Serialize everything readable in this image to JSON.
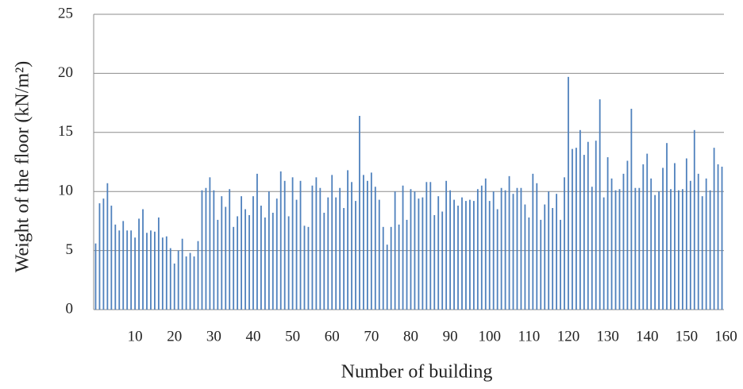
{
  "chart_data": {
    "type": "bar",
    "x_label": "Number of building",
    "y_label": "Weight of the floor (kN/m²)",
    "categories": [
      null,
      null,
      null,
      null,
      null,
      null,
      null,
      null,
      null,
      "10",
      null,
      null,
      null,
      null,
      null,
      null,
      null,
      null,
      null,
      "20",
      null,
      null,
      null,
      null,
      null,
      null,
      null,
      null,
      null,
      "30",
      null,
      null,
      null,
      null,
      null,
      null,
      null,
      null,
      null,
      "40",
      null,
      null,
      null,
      null,
      null,
      null,
      null,
      null,
      null,
      "50",
      null,
      null,
      null,
      null,
      null,
      null,
      null,
      null,
      null,
      "60",
      null,
      null,
      null,
      null,
      null,
      null,
      null,
      null,
      null,
      "70",
      null,
      null,
      null,
      null,
      null,
      null,
      null,
      null,
      null,
      "80",
      null,
      null,
      null,
      null,
      null,
      null,
      null,
      null,
      null,
      "90",
      null,
      null,
      null,
      null,
      null,
      null,
      null,
      null,
      null,
      "100",
      null,
      null,
      null,
      null,
      null,
      null,
      null,
      null,
      null,
      "110",
      null,
      null,
      null,
      null,
      null,
      null,
      null,
      null,
      null,
      "120",
      null,
      null,
      null,
      null,
      null,
      null,
      null,
      null,
      null,
      "130",
      null,
      null,
      null,
      null,
      null,
      null,
      null,
      null,
      null,
      "140",
      null,
      null,
      null,
      null,
      null,
      null,
      null,
      null,
      null,
      "150",
      null,
      null,
      null,
      null,
      null,
      null,
      null,
      null,
      null,
      "160"
    ],
    "values": [
      5.6,
      9.0,
      9.4,
      10.7,
      8.8,
      7.2,
      6.7,
      7.5,
      6.7,
      6.7,
      6.1,
      7.7,
      8.5,
      6.5,
      6.7,
      6.6,
      7.8,
      6.1,
      6.2,
      5.2,
      3.9,
      5.0,
      6.0,
      4.5,
      4.8,
      4.5,
      5.8,
      10.1,
      10.3,
      11.2,
      10.1,
      7.6,
      9.6,
      8.7,
      10.2,
      7.0,
      7.9,
      9.6,
      8.5,
      8.0,
      9.6,
      11.5,
      8.8,
      7.8,
      10.0,
      8.2,
      9.4,
      11.7,
      10.9,
      7.9,
      11.2,
      9.3,
      10.9,
      7.1,
      7.0,
      10.5,
      11.2,
      10.3,
      8.2,
      9.5,
      11.4,
      9.5,
      10.3,
      8.6,
      11.8,
      10.8,
      9.2,
      16.4,
      11.4,
      10.9,
      11.6,
      10.4,
      9.3,
      7.0,
      5.5,
      7.0,
      10.0,
      7.2,
      10.5,
      7.6,
      10.2,
      10.0,
      9.4,
      9.5,
      10.8,
      10.8,
      8.0,
      9.6,
      8.3,
      10.9,
      10.1,
      9.3,
      8.8,
      9.5,
      9.2,
      9.3,
      9.2,
      10.2,
      10.5,
      11.1,
      9.2,
      10.0,
      8.5,
      10.3,
      10.1,
      11.3,
      9.8,
      10.3,
      10.3,
      8.9,
      7.8,
      11.5,
      10.7,
      7.6,
      8.9,
      10.0,
      8.6,
      9.8,
      7.6,
      11.2,
      19.7,
      13.6,
      13.7,
      15.2,
      13.1,
      14.2,
      10.4,
      14.3,
      17.8,
      9.5,
      12.9,
      11.1,
      10.1,
      10.2,
      11.5,
      12.6,
      17.0,
      10.3,
      10.3,
      12.3,
      13.2,
      11.1,
      9.7,
      10.0,
      12.0,
      14.1,
      10.2,
      12.4,
      10.1,
      10.2,
      12.8,
      10.9,
      15.2,
      11.5,
      9.6,
      11.1,
      10.1,
      13.7,
      12.3,
      12.1
    ],
    "color": "#4f81bd",
    "ylim": [
      0,
      25
    ],
    "yticks": [
      0,
      5,
      10,
      15,
      20,
      25
    ],
    "grid": true
  }
}
